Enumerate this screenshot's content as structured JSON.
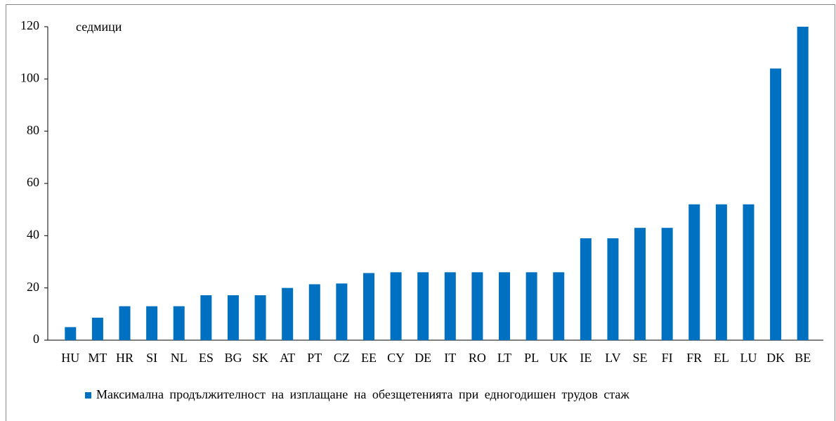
{
  "chart_data": {
    "type": "bar",
    "unit_label": "седмици",
    "categories": [
      "HU",
      "MT",
      "HR",
      "SI",
      "NL",
      "ES",
      "BG",
      "SK",
      "AT",
      "PT",
      "CZ",
      "EE",
      "CY",
      "DE",
      "IT",
      "RO",
      "LT",
      "PL",
      "UK",
      "IE",
      "LV",
      "SE",
      "FI",
      "FR",
      "EL",
      "LU",
      "DK",
      "BE"
    ],
    "series": [
      {
        "name": "Максимална продължителност на изплащане на обезщетенията при едногодишен трудов стаж",
        "color": "#0070c0",
        "values": [
          5,
          8.6,
          13,
          13,
          13,
          17.2,
          17.2,
          17.2,
          20,
          21.4,
          21.7,
          25.7,
          26,
          26,
          26,
          26,
          26,
          26,
          26,
          39,
          39,
          43,
          43,
          52,
          52,
          52,
          104,
          120
        ]
      }
    ],
    "ylim": [
      0,
      120
    ],
    "yticks": [
      0,
      20,
      40,
      60,
      80,
      100,
      120
    ],
    "grid": false,
    "legend": "bottom"
  }
}
